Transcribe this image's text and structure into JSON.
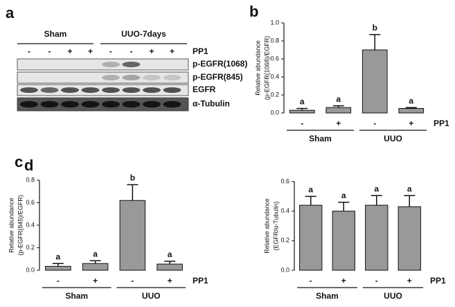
{
  "panel_a": {
    "letter": "a",
    "groups": [
      "Sham",
      "UUO-7days"
    ],
    "treatment_label": "PP1",
    "treatments": [
      "-",
      "-",
      "+",
      "+",
      "-",
      "-",
      "+",
      "+"
    ],
    "blots": [
      "p-EGFR(1068)",
      "p-EGFR(845)",
      "EGFR",
      "α-Tubulin"
    ]
  },
  "chart_data": [
    {
      "type": "bar",
      "letter": "b",
      "y_label": [
        "Relative abundance",
        "(p-EGFR(1068)/EGFR)"
      ],
      "categories": [
        "-",
        "+",
        "-",
        "+"
      ],
      "groups": [
        "Sham",
        "UUO"
      ],
      "x_label": "PP1",
      "values": [
        0.03,
        0.06,
        0.7,
        0.05
      ],
      "errors": [
        0.02,
        0.02,
        0.17,
        0.01
      ],
      "annotations": [
        "a",
        "a",
        "b",
        "a"
      ],
      "color": "#999999",
      "ylim": [
        0,
        1
      ],
      "yticks": [
        {
          "value": 0,
          "label": "0.0"
        },
        0.2,
        0.4,
        0.6,
        0.8,
        {
          "value": 1,
          "label": "1.0"
        }
      ]
    },
    {
      "type": "bar",
      "letter": "c",
      "y_label": [
        "Relative abundance",
        "(p-EGFR(845)/EGFR)"
      ],
      "categories": [
        "-",
        "+",
        "-",
        "+"
      ],
      "groups": [
        "Sham",
        "UUO"
      ],
      "x_label": "PP1",
      "values": [
        0.035,
        0.06,
        0.62,
        0.055
      ],
      "errors": [
        0.025,
        0.025,
        0.14,
        0.025
      ],
      "annotations": [
        "a",
        "a",
        "b",
        "a"
      ],
      "color": "#999999",
      "ylim": [
        0,
        0.8
      ],
      "yticks": [
        {
          "value": 0,
          "label": "0.0"
        },
        0.2,
        0.4,
        0.6,
        0.8
      ]
    },
    {
      "type": "bar",
      "letter": "d",
      "y_label": [
        "Relative abundance",
        "(EGFR/α-Tubulin)"
      ],
      "categories": [
        "-",
        "+",
        "-",
        "+"
      ],
      "groups": [
        "Sham",
        "UUO"
      ],
      "x_label": "PP1",
      "values": [
        0.44,
        0.4,
        0.44,
        0.43
      ],
      "errors": [
        0.06,
        0.06,
        0.065,
        0.075
      ],
      "annotations": [
        "a",
        "a",
        "a",
        "a"
      ],
      "color": "#999999",
      "ylim": [
        0,
        0.6
      ],
      "yticks": [
        {
          "value": 0,
          "label": "0.0"
        },
        0.2,
        0.4,
        0.6
      ]
    }
  ]
}
